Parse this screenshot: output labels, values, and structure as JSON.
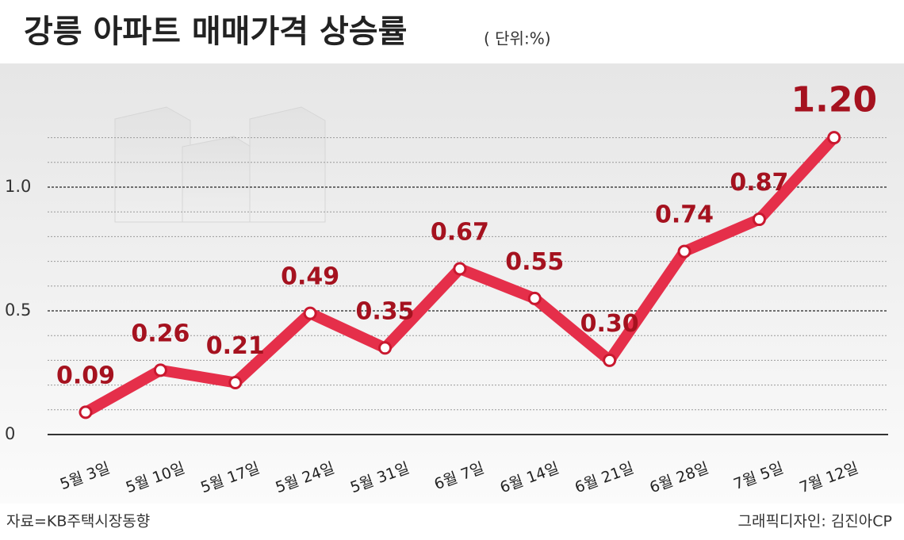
{
  "chart_data": {
    "type": "line",
    "title": "강릉 아파트 매매가격 상승률",
    "subtitle": "( 단위:%)",
    "categories": [
      "5월 3일",
      "5월 10일",
      "5월 17일",
      "5월 24일",
      "5월 31일",
      "6월 7일",
      "6월 14일",
      "6월 21일",
      "6월 28일",
      "7월 5일",
      "7월 12일"
    ],
    "series": [
      {
        "name": "매매가격 상승률",
        "color": "#e52f4a",
        "values": [
          0.09,
          0.26,
          0.21,
          0.49,
          0.35,
          0.67,
          0.55,
          0.3,
          0.74,
          0.87,
          1.2
        ],
        "value_labels": [
          "0.09",
          "0.26",
          "0.21",
          "0.49",
          "0.35",
          "0.67",
          "0.55",
          "0.30",
          "0.74",
          "0.87",
          "1.20"
        ]
      }
    ],
    "ylim": [
      0,
      1.2
    ],
    "yticks": [
      0,
      0.5,
      {
        "value": 1,
        "label": "1.0"
      }
    ],
    "minor_yticks": [
      0.1,
      0.2,
      0.3,
      0.4,
      0.6,
      0.7,
      0.8,
      0.9,
      1.1,
      1.2
    ],
    "grid": true,
    "source": "자료=KB주택시장동향",
    "credit": "그래픽디자인: 김진아CP"
  }
}
